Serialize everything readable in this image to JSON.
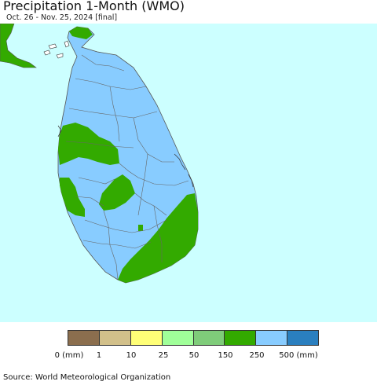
{
  "header": {
    "title": "Precipitation 1-Month (WMO)",
    "subtitle": "Oct. 26 - Nov. 25, 2024 [final]"
  },
  "map": {
    "region": "Sri Lanka",
    "colors": {
      "ocean": "#ccffff",
      "land_dominant": "#88ccff",
      "green_high": "#33aa00",
      "neighbor_land": "#33aa00",
      "borders": "#555555"
    }
  },
  "legend": {
    "swatches": [
      {
        "color": "#8b6e4e"
      },
      {
        "color": "#d2c08a"
      },
      {
        "color": "#ffff77"
      },
      {
        "color": "#a0ff99"
      },
      {
        "color": "#7fcc7a"
      },
      {
        "color": "#33aa00"
      },
      {
        "color": "#88ccff"
      },
      {
        "color": "#2a7fbf"
      }
    ],
    "labels": [
      "0 (mm)",
      "1",
      "10",
      "25",
      "50",
      "150",
      "250",
      "500 (mm)"
    ]
  },
  "footer": {
    "source": "Source: World Meteorological Organization"
  }
}
